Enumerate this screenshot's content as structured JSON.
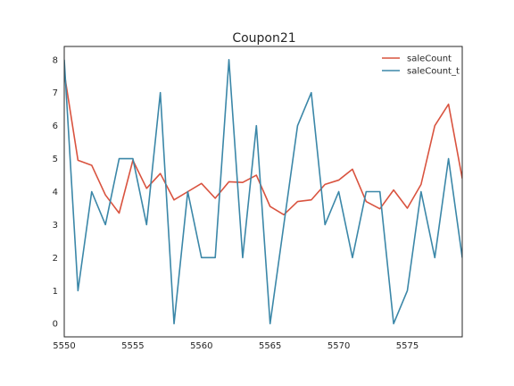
{
  "chart_data": {
    "type": "line",
    "title": "Coupon21",
    "xlabel": "",
    "ylabel": "",
    "xlim": [
      5550,
      5579
    ],
    "ylim": [
      -0.4,
      8.4
    ],
    "xticks": [
      5550,
      5555,
      5560,
      5565,
      5570,
      5575
    ],
    "yticks": [
      0,
      1,
      2,
      3,
      4,
      5,
      6,
      7,
      8
    ],
    "grid": false,
    "legend_position": "top-right",
    "x": [
      5550,
      5551,
      5552,
      5553,
      5554,
      5555,
      5556,
      5557,
      5558,
      5559,
      5560,
      5561,
      5562,
      5563,
      5564,
      5565,
      5566,
      5567,
      5568,
      5569,
      5570,
      5571,
      5572,
      5573,
      5574,
      5575,
      5576,
      5577,
      5578,
      5579
    ],
    "series": [
      {
        "name": "saleCount",
        "color": "#d9533f",
        "values": [
          7.6,
          4.95,
          4.8,
          3.9,
          3.35,
          4.95,
          4.1,
          4.55,
          3.75,
          4.0,
          4.25,
          3.8,
          4.3,
          4.28,
          4.5,
          3.55,
          3.3,
          3.7,
          3.75,
          4.22,
          4.35,
          4.68,
          3.7,
          3.48,
          4.05,
          3.5,
          4.22,
          6.0,
          6.65,
          4.4
        ]
      },
      {
        "name": "saleCount_t",
        "color": "#3b87a8",
        "values": [
          8,
          1,
          4,
          3,
          5,
          5,
          3,
          7,
          0,
          4,
          2,
          2,
          8,
          2,
          6,
          0,
          3,
          6,
          7,
          3,
          4,
          2,
          4,
          4,
          0,
          1,
          4,
          2,
          5,
          2
        ]
      }
    ]
  }
}
